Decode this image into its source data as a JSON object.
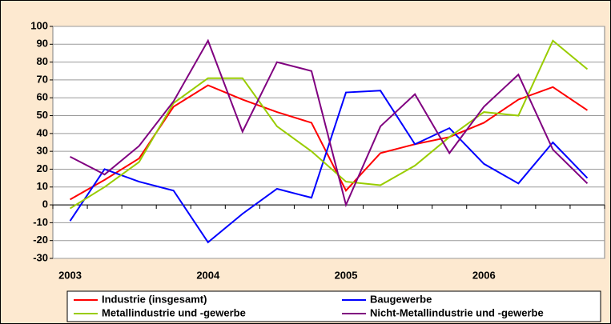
{
  "chart_data": {
    "type": "line",
    "categories": [
      "2003",
      null,
      null,
      null,
      "2004",
      null,
      null,
      null,
      "2005",
      null,
      null,
      null,
      "2006",
      null,
      null,
      null
    ],
    "ylim": [
      -30,
      100
    ],
    "yticks": [
      -30,
      -20,
      -10,
      0,
      10,
      20,
      30,
      40,
      50,
      60,
      70,
      80,
      90,
      100
    ],
    "grid": true,
    "series": [
      {
        "name": "Industrie (insgesamt)",
        "color": "#ff0000",
        "values": [
          3,
          14,
          26,
          55,
          67,
          59,
          52,
          46,
          8,
          29,
          34,
          38,
          46,
          59,
          66,
          53
        ]
      },
      {
        "name": "Baugewerbe",
        "color": "#0000ff",
        "values": [
          -9,
          20,
          13,
          8,
          -21,
          -5,
          9,
          4,
          63,
          64,
          34,
          43,
          23,
          12,
          35,
          15
        ]
      },
      {
        "name": "Metallindustrie und -gewerbe",
        "color": "#99cc00",
        "values": [
          -2,
          10,
          24,
          57,
          71,
          71,
          44,
          30,
          13,
          11,
          22,
          38,
          52,
          50,
          92,
          76
        ]
      },
      {
        "name": "Nicht-Metallindustrie und -gewerbe",
        "color": "#800080",
        "values": [
          27,
          17,
          33,
          58,
          92,
          41,
          80,
          75,
          0,
          44,
          62,
          29,
          55,
          73,
          31,
          12
        ]
      }
    ]
  }
}
